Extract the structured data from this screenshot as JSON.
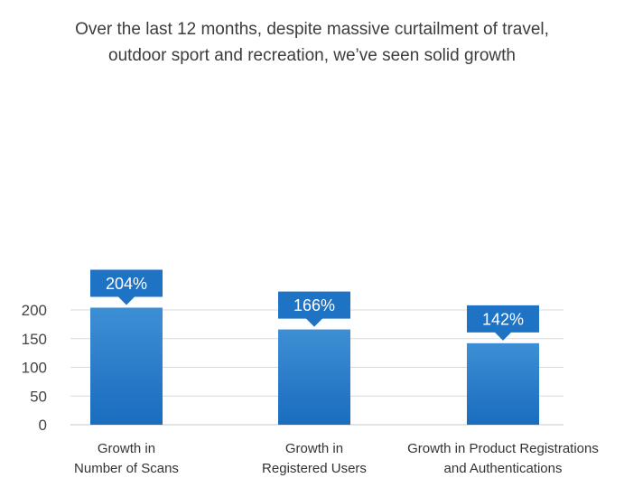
{
  "header": {
    "title_line1": "Over the last 12 months, despite massive curtailment of travel,",
    "title_line2": "outdoor sport and recreation, we’ve seen solid growth"
  },
  "chart_data": {
    "type": "bar",
    "title": "Over the last 12 months, despite massive curtailment of travel, outdoor sport and recreation, we’ve seen solid growth",
    "categories": [
      [
        "Growth in",
        "Number of Scans"
      ],
      [
        "Growth in",
        "Registered Users"
      ],
      [
        "Growth in Product Registrations",
        "and Authentications"
      ]
    ],
    "values": [
      204,
      166,
      142
    ],
    "data_labels": [
      "204%",
      "166%",
      "142%"
    ],
    "ylim": [
      0,
      225
    ],
    "yticks": [
      0,
      50,
      100,
      150,
      200
    ],
    "xlabel": "",
    "ylabel": "",
    "grid": true,
    "colors": {
      "bar_top": "#3d8fd4",
      "bar_bottom": "#1a6cbf",
      "label_bg": "#1f73c4",
      "grid": "#d9d9d9"
    }
  }
}
